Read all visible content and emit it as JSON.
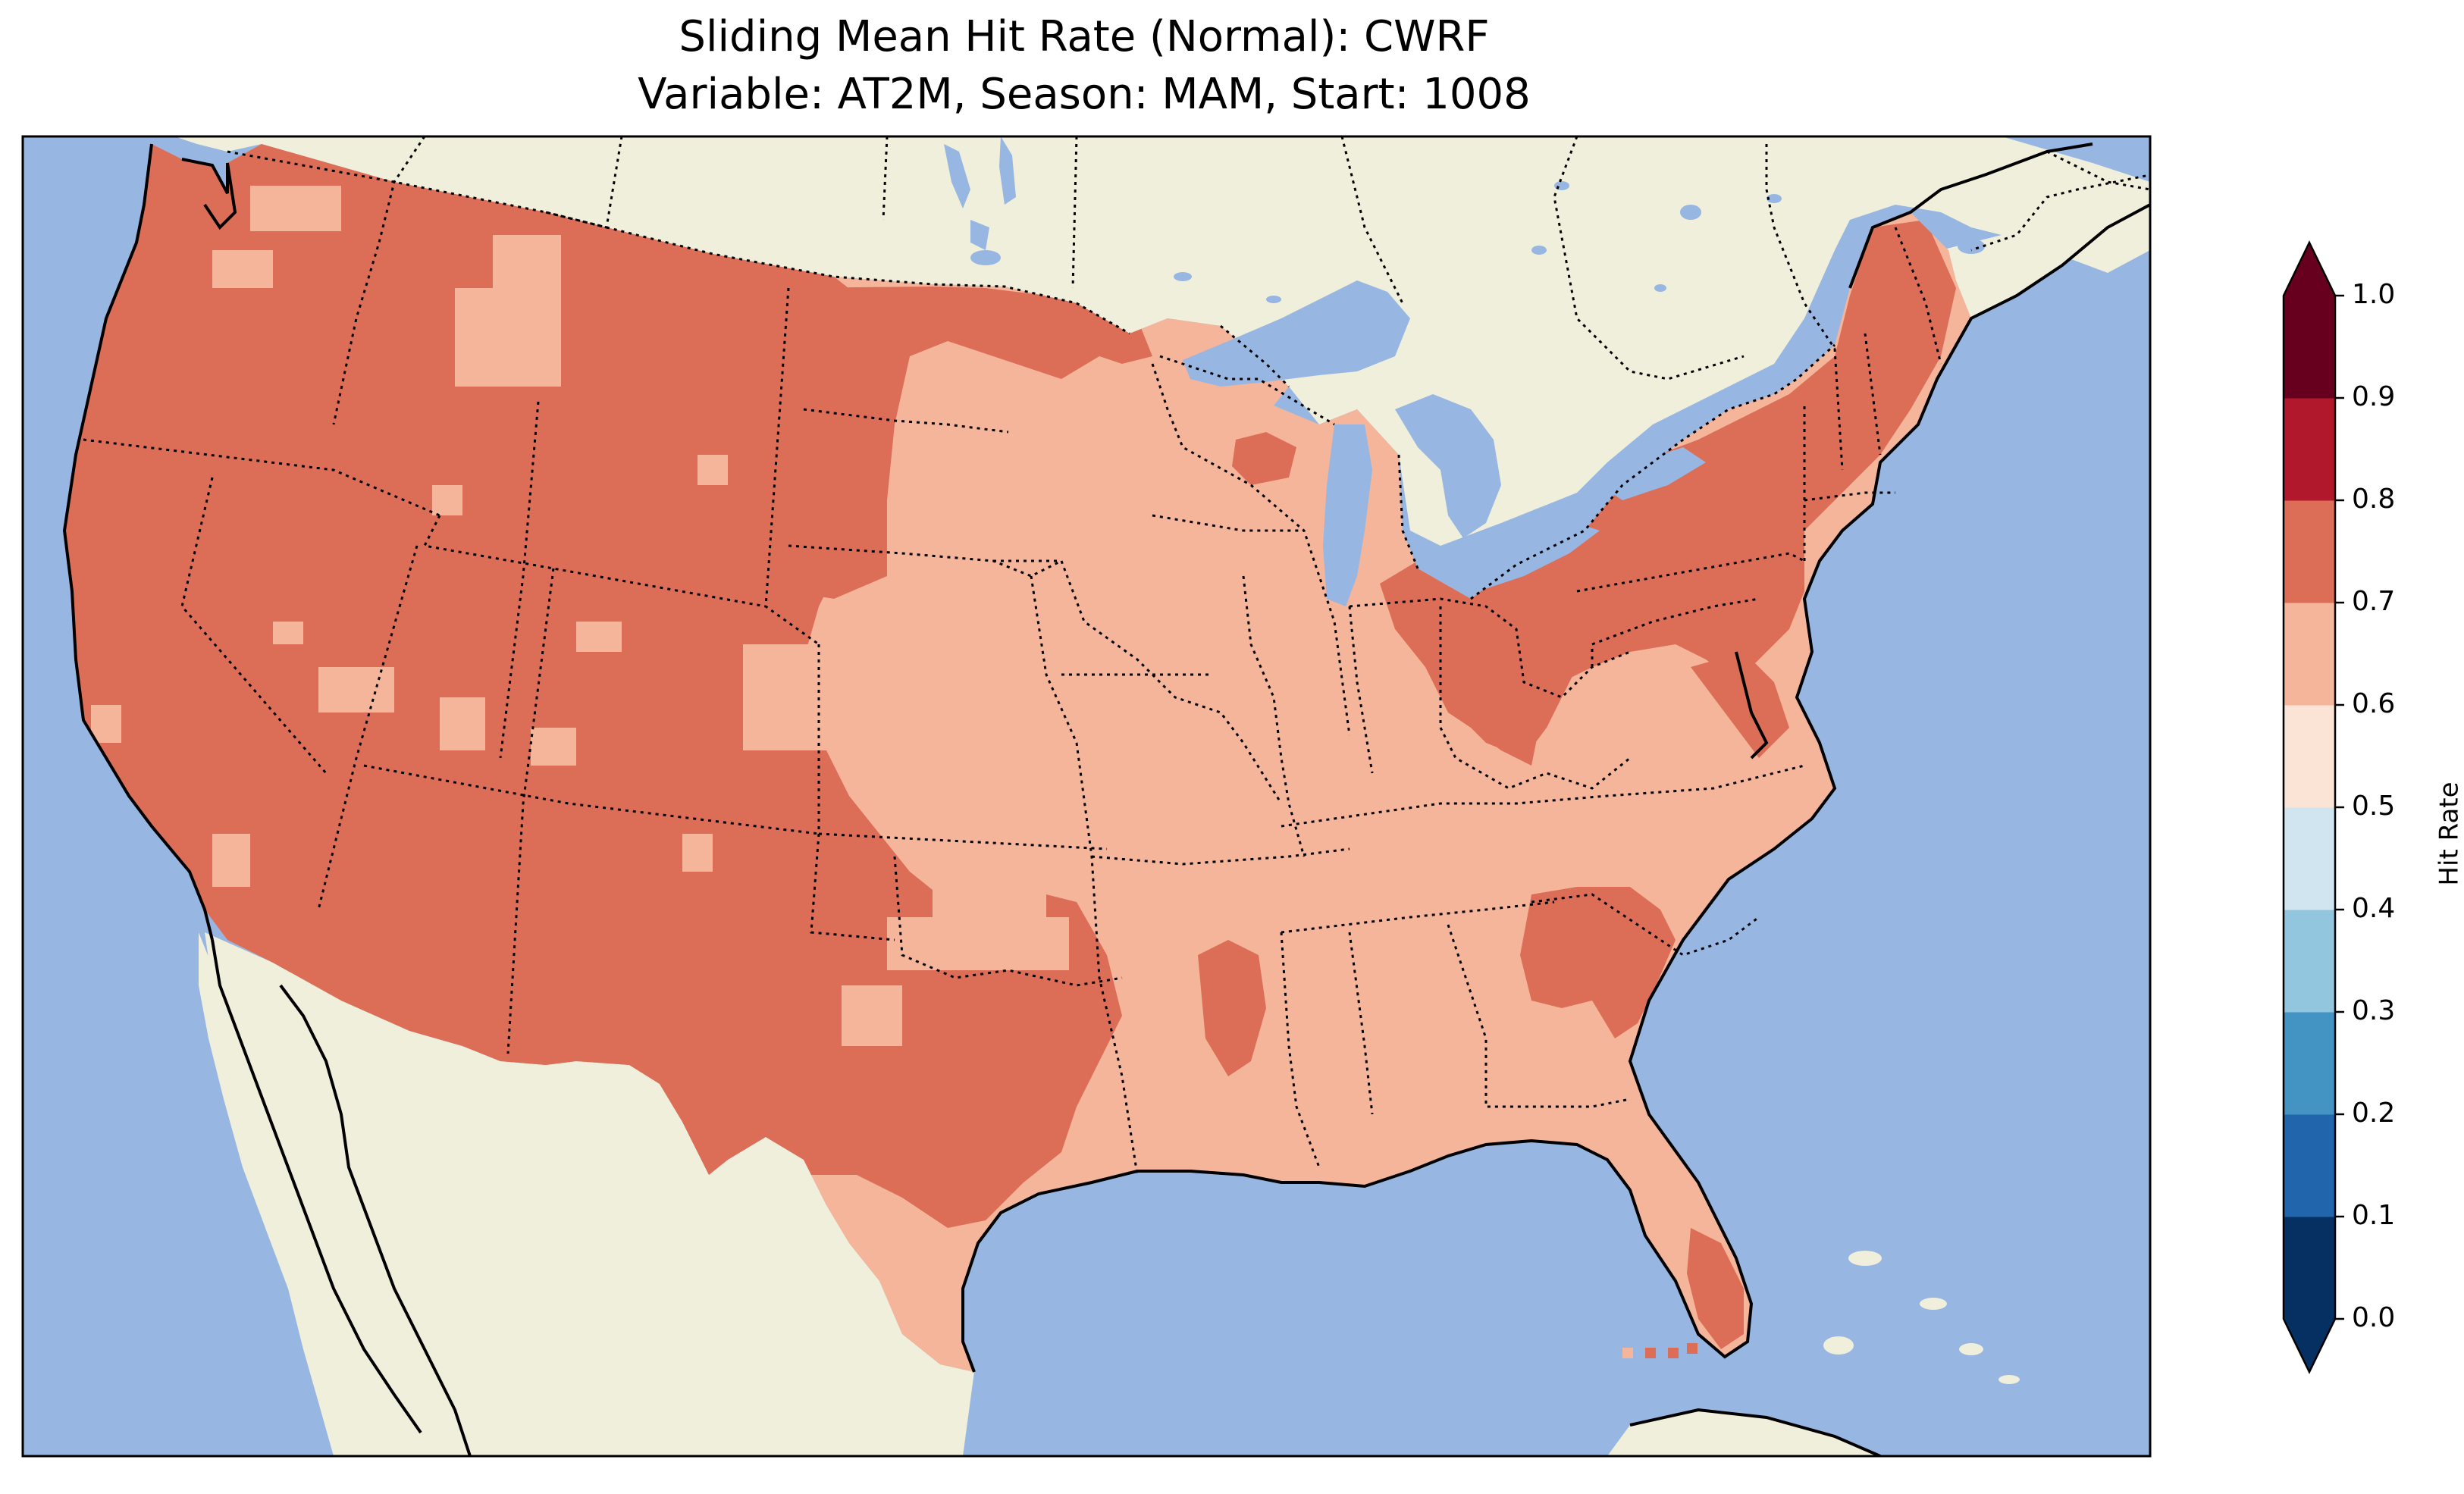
{
  "title": {
    "line1": "Sliding Mean Hit Rate (Normal): CWRF",
    "line2": "Variable: AT2M, Season: MAM, Start: 1008"
  },
  "colors": {
    "ocean": "#97b6e1",
    "land": "#efefdb",
    "hit_0_7_to_0_8": "#dc6e57",
    "hit_0_6_to_0_7": "#f5b59a"
  },
  "colorbar": {
    "label": "Hit Rate",
    "ticks": [
      "0.0",
      "0.1",
      "0.2",
      "0.3",
      "0.4",
      "0.5",
      "0.6",
      "0.7",
      "0.8",
      "0.9",
      "1.0"
    ],
    "bins": [
      {
        "from": 0.0,
        "to": 0.1,
        "color": "#053061"
      },
      {
        "from": 0.1,
        "to": 0.2,
        "color": "#2166ac"
      },
      {
        "from": 0.2,
        "to": 0.3,
        "color": "#4393c3"
      },
      {
        "from": 0.3,
        "to": 0.4,
        "color": "#92c5de"
      },
      {
        "from": 0.4,
        "to": 0.5,
        "color": "#d1e5f0"
      },
      {
        "from": 0.5,
        "to": 0.6,
        "color": "#fbe3d6"
      },
      {
        "from": 0.6,
        "to": 0.7,
        "color": "#f5b59a"
      },
      {
        "from": 0.7,
        "to": 0.8,
        "color": "#dc6e57"
      },
      {
        "from": 0.8,
        "to": 0.9,
        "color": "#b2182b"
      },
      {
        "from": 0.9,
        "to": 1.0,
        "color": "#67001f"
      }
    ],
    "extend_low_color": "#053061",
    "extend_high_color": "#67001f"
  },
  "map": {
    "variable": "AT2M",
    "season": "MAM",
    "start": "1008",
    "model": "CWRF"
  }
}
